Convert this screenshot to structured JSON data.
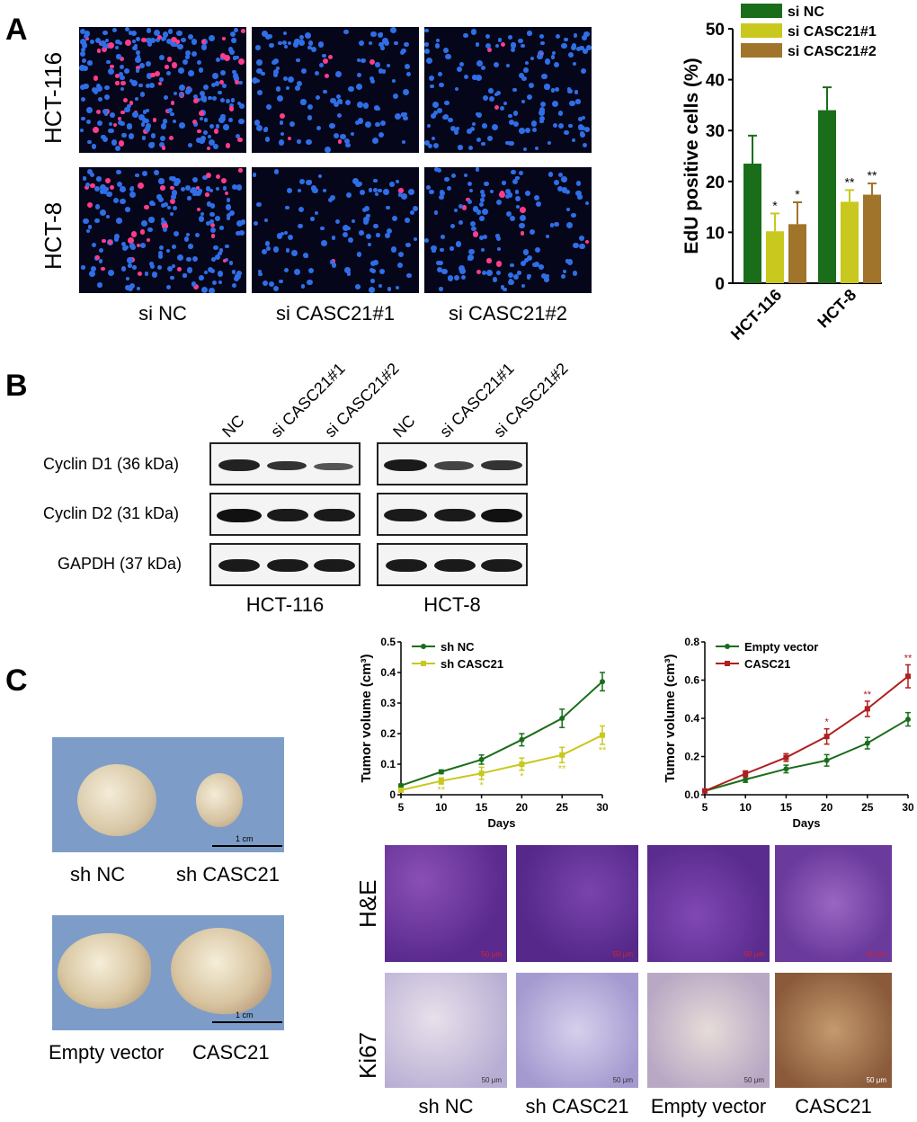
{
  "panels": {
    "a": "A",
    "b": "B",
    "c": "C"
  },
  "panelA": {
    "row_labels": [
      "HCT-116",
      "HCT-8"
    ],
    "col_labels": [
      "si NC",
      "si CASC21#1",
      "si CASC21#2"
    ]
  },
  "panelB": {
    "lane_labels": [
      "NC",
      "si CASC21#1",
      "si CASC21#2",
      "NC",
      "si CASC21#1",
      "si CASC21#2"
    ],
    "row_labels": [
      "Cyclin D1 (36 kDa)",
      "Cyclin D2 (31 kDa)",
      "GAPDH (37 kDa)"
    ],
    "group_labels": [
      "HCT-116",
      "HCT-8"
    ]
  },
  "panelC": {
    "photo_scale": "1 cm",
    "photo_captions": [
      "sh NC",
      "sh CASC21",
      "Empty vector",
      "CASC21"
    ],
    "histo_rows": [
      "H&E",
      "Ki67"
    ],
    "histo_cols": [
      "sh NC",
      "sh CASC21",
      "Empty vector",
      "CASC21"
    ],
    "histo_scale": "50 μm"
  },
  "chart_data": [
    {
      "type": "bar",
      "ylabel": "EdU positive cells (%)",
      "ylim": [
        0,
        50
      ],
      "yticks": [
        0,
        10,
        20,
        30,
        40,
        50
      ],
      "categories": [
        "HCT-116",
        "HCT-8"
      ],
      "legend_position": "top-right",
      "series": [
        {
          "name": "si NC",
          "color": "#1a6e1a",
          "values": [
            23.5,
            34.0
          ],
          "errors": [
            5.5,
            4.5
          ],
          "sig": [
            "",
            ""
          ]
        },
        {
          "name": "si CASC21#1",
          "color": "#c8c81e",
          "values": [
            10.2,
            16.0
          ],
          "errors": [
            3.5,
            2.3
          ],
          "sig": [
            "*",
            "**"
          ]
        },
        {
          "name": "si CASC21#2",
          "color": "#a0742a",
          "values": [
            11.6,
            17.4
          ],
          "errors": [
            4.3,
            2.2
          ],
          "sig": [
            "*",
            "**"
          ]
        }
      ]
    },
    {
      "type": "line",
      "xlabel": "Days",
      "ylabel": "Tumor volume (cm³)",
      "x": [
        5,
        10,
        15,
        20,
        25,
        30
      ],
      "ylim": [
        0,
        0.5
      ],
      "yticks": [
        0,
        0.1,
        0.2,
        0.3,
        0.4,
        0.5
      ],
      "legend_position": "top-left",
      "series": [
        {
          "name": "sh NC",
          "color": "#1a6e1a",
          "marker": "circle",
          "values": [
            0.03,
            0.075,
            0.115,
            0.18,
            0.25,
            0.37
          ],
          "errors": [
            0.005,
            0.006,
            0.015,
            0.02,
            0.03,
            0.03
          ],
          "sig": [
            "",
            "",
            "",
            "",
            "",
            ""
          ]
        },
        {
          "name": "sh CASC21",
          "color": "#c8c81e",
          "marker": "square",
          "values": [
            0.015,
            0.045,
            0.07,
            0.1,
            0.13,
            0.195
          ],
          "errors": [
            0.004,
            0.01,
            0.02,
            0.02,
            0.025,
            0.03
          ],
          "sig": [
            "",
            "**",
            "*",
            "*",
            "**",
            "**"
          ]
        }
      ]
    },
    {
      "type": "line",
      "xlabel": "Days",
      "ylabel": "Tumor volume (cm³)",
      "x": [
        5,
        10,
        15,
        20,
        25,
        30
      ],
      "ylim": [
        0,
        0.8
      ],
      "yticks": [
        0.0,
        0.2,
        0.4,
        0.6,
        0.8
      ],
      "legend_position": "top-left",
      "series": [
        {
          "name": "Empty vector",
          "color": "#1a6e1a",
          "marker": "circle",
          "values": [
            0.02,
            0.08,
            0.135,
            0.18,
            0.27,
            0.395
          ],
          "errors": [
            0.005,
            0.015,
            0.02,
            0.03,
            0.03,
            0.035
          ],
          "sig": [
            "",
            "",
            "",
            "",
            "",
            ""
          ]
        },
        {
          "name": "CASC21",
          "color": "#b01e1e",
          "marker": "square",
          "values": [
            0.02,
            0.11,
            0.195,
            0.305,
            0.45,
            0.62
          ],
          "errors": [
            0.005,
            0.015,
            0.02,
            0.04,
            0.04,
            0.06
          ],
          "sig": [
            "",
            "",
            "",
            "*",
            "**",
            "**"
          ]
        }
      ]
    }
  ]
}
